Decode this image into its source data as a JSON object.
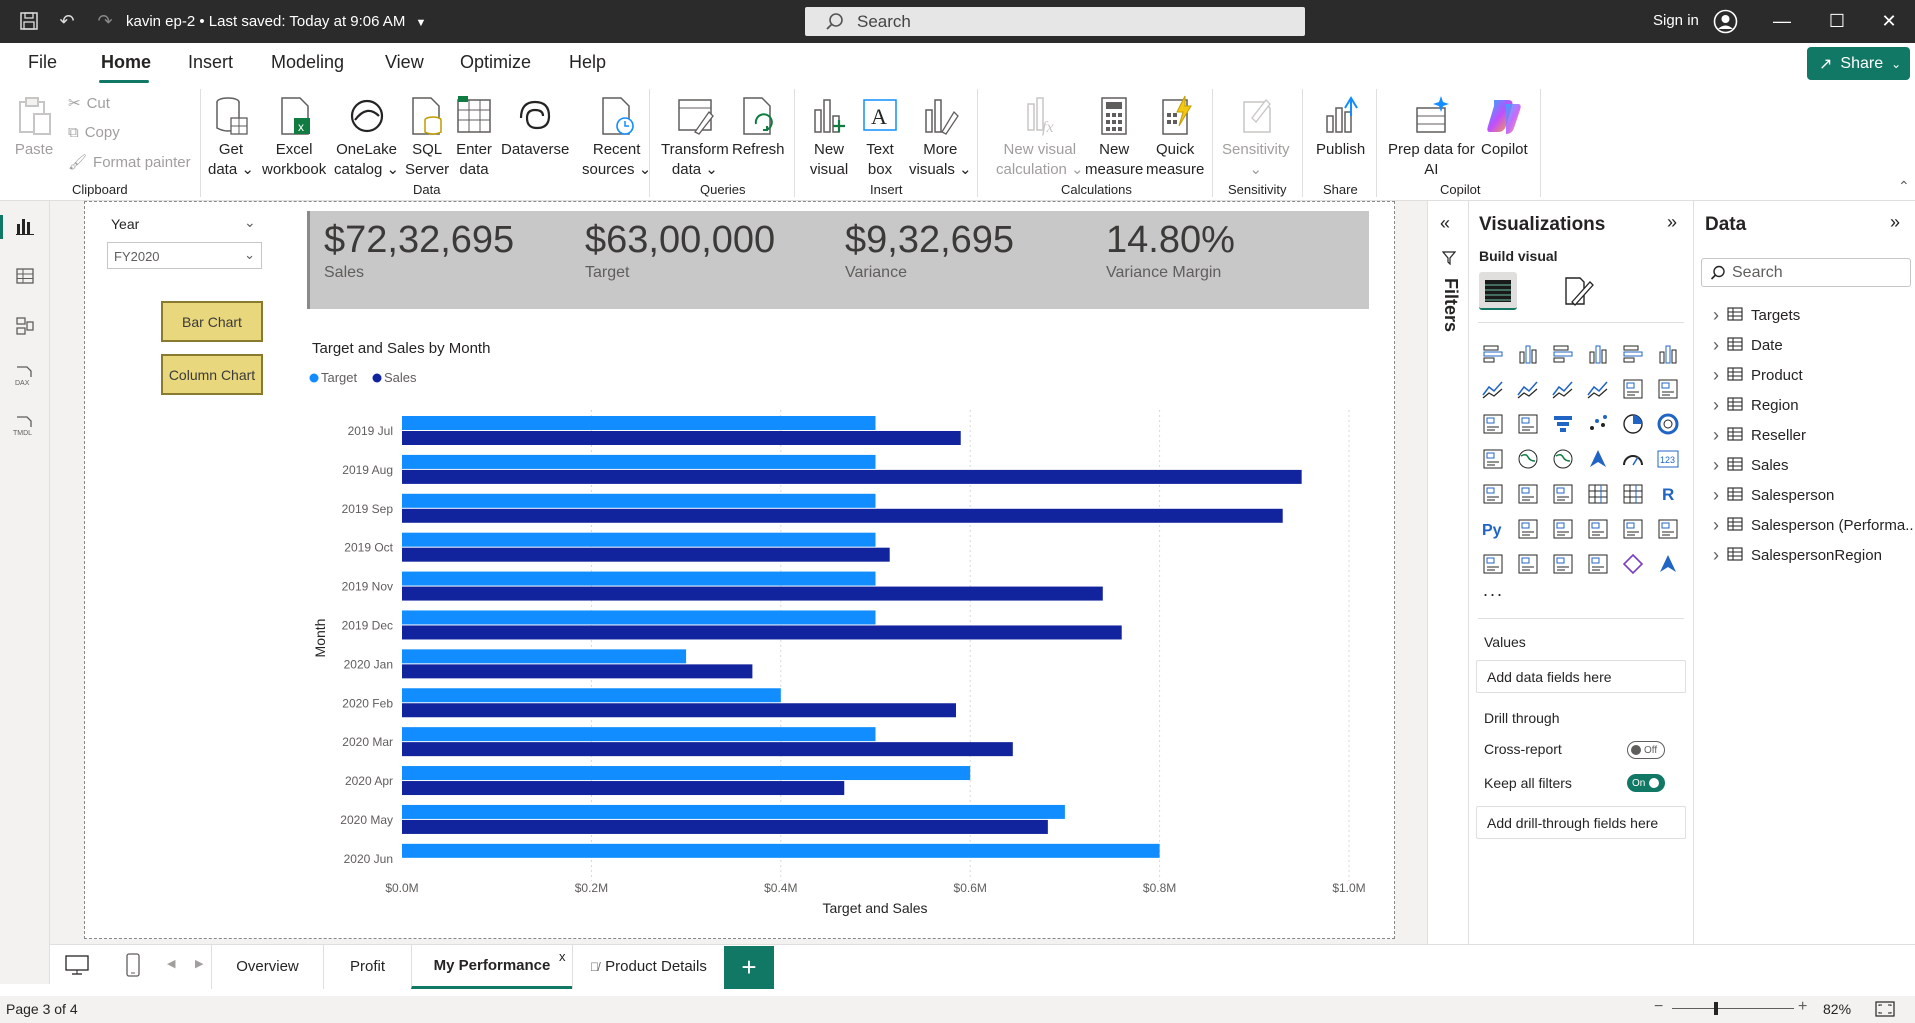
{
  "titlebar": {
    "doc_title": "kavin ep-2 • Last saved: Today at 9:06 AM",
    "search_placeholder": "Search",
    "signin": "Sign in"
  },
  "menu": {
    "tabs": [
      "File",
      "Home",
      "Insert",
      "Modeling",
      "View",
      "Optimize",
      "Help"
    ],
    "share": "Share"
  },
  "ribbon": {
    "clipboard": {
      "paste": "Paste",
      "cut": "Cut",
      "copy": "Copy",
      "format_painter": "Format painter",
      "label": "Clipboard"
    },
    "data": {
      "label": "Data",
      "get_data": [
        "Get",
        "data ⌄"
      ],
      "excel": [
        "Excel",
        "workbook"
      ],
      "onelake": [
        "OneLake",
        "catalog ⌄"
      ],
      "sql": [
        "SQL",
        "Server"
      ],
      "enter": [
        "Enter",
        "data"
      ],
      "dataverse": "Dataverse",
      "recent": [
        "Recent",
        "sources ⌄"
      ]
    },
    "queries": {
      "label": "Queries",
      "transform": [
        "Transform",
        "data ⌄"
      ],
      "refresh": "Refresh"
    },
    "insert": {
      "label": "Insert",
      "new_visual": [
        "New",
        "visual"
      ],
      "text_box": [
        "Text",
        "box"
      ],
      "more_visuals": [
        "More",
        "visuals ⌄"
      ]
    },
    "calculations": {
      "label": "Calculations",
      "new_visual_calc": [
        "New visual",
        "calculation ⌄"
      ],
      "new_measure": [
        "New",
        "measure"
      ],
      "quick_measure": [
        "Quick",
        "measure"
      ]
    },
    "sensitivity": {
      "label": "Sensitivity",
      "btn": "Sensitivity"
    },
    "share": {
      "label": "Share",
      "publish": "Publish"
    },
    "copilot": {
      "label": "Copilot",
      "prep": [
        "Prep data for",
        "AI"
      ],
      "copilot": "Copilot"
    }
  },
  "slicer": {
    "label": "Year",
    "value": "FY2020"
  },
  "buttons": {
    "bar_chart": "Bar Chart",
    "column_chart": "Column Chart"
  },
  "kpis": [
    {
      "value": "$72,32,695",
      "label": "Sales"
    },
    {
      "value": "$63,00,000",
      "label": "Target"
    },
    {
      "value": "$9,32,695",
      "label": "Variance"
    },
    {
      "value": "14.80%",
      "label": "Variance Margin"
    }
  ],
  "chart_data": {
    "type": "bar",
    "orientation": "horizontal",
    "title": "Target and Sales by Month",
    "xlabel": "Target and Sales",
    "ylabel": "Month",
    "legend": "top-left",
    "categories": [
      "2019 Jul",
      "2019 Aug",
      "2019 Sep",
      "2019 Oct",
      "2019 Nov",
      "2019 Dec",
      "2020 Jan",
      "2020 Feb",
      "2020 Mar",
      "2020 Apr",
      "2020 May",
      "2020 Jun"
    ],
    "series": [
      {
        "name": "Target",
        "color": "#118dff",
        "values": [
          0.5,
          0.5,
          0.5,
          0.5,
          0.5,
          0.5,
          0.3,
          0.4,
          0.5,
          0.6,
          0.7,
          0.8
        ]
      },
      {
        "name": "Sales",
        "color": "#12239e",
        "values": [
          0.59,
          0.95,
          0.93,
          0.515,
          0.74,
          0.76,
          0.37,
          0.585,
          0.645,
          0.467,
          0.682,
          null
        ]
      }
    ],
    "xticks": [
      "$0.0M",
      "$0.2M",
      "$0.4M",
      "$0.6M",
      "$0.8M",
      "$1.0M"
    ],
    "xlim": [
      0,
      1.0
    ],
    "grid": true
  },
  "filters": {
    "label": "Filters"
  },
  "viz_pane": {
    "title": "Visualizations",
    "build_visual": "Build visual",
    "values_label": "Values",
    "values_placeholder": "Add data fields here",
    "drill_through": "Drill through",
    "cross_report": "Cross-report",
    "cross_report_state": "Off",
    "keep_filters": "Keep all filters",
    "keep_filters_state": "On",
    "drill_placeholder": "Add drill-through fields here",
    "more": "..."
  },
  "data_pane": {
    "title": "Data",
    "search_placeholder": "Search",
    "tables": [
      "Targets",
      "Date",
      "Product",
      "Region",
      "Reseller",
      "Sales",
      "Salesperson",
      "Salesperson (Performa...",
      "SalespersonRegion"
    ]
  },
  "tabs": {
    "pages": [
      "Overview",
      "Profit",
      "My Performance",
      "Product Details"
    ],
    "active": "My Performance",
    "close": "x",
    "add": "+"
  },
  "status": {
    "page": "Page 3 of 4",
    "zoom": "82%",
    "minus": "−",
    "plus": "+"
  }
}
